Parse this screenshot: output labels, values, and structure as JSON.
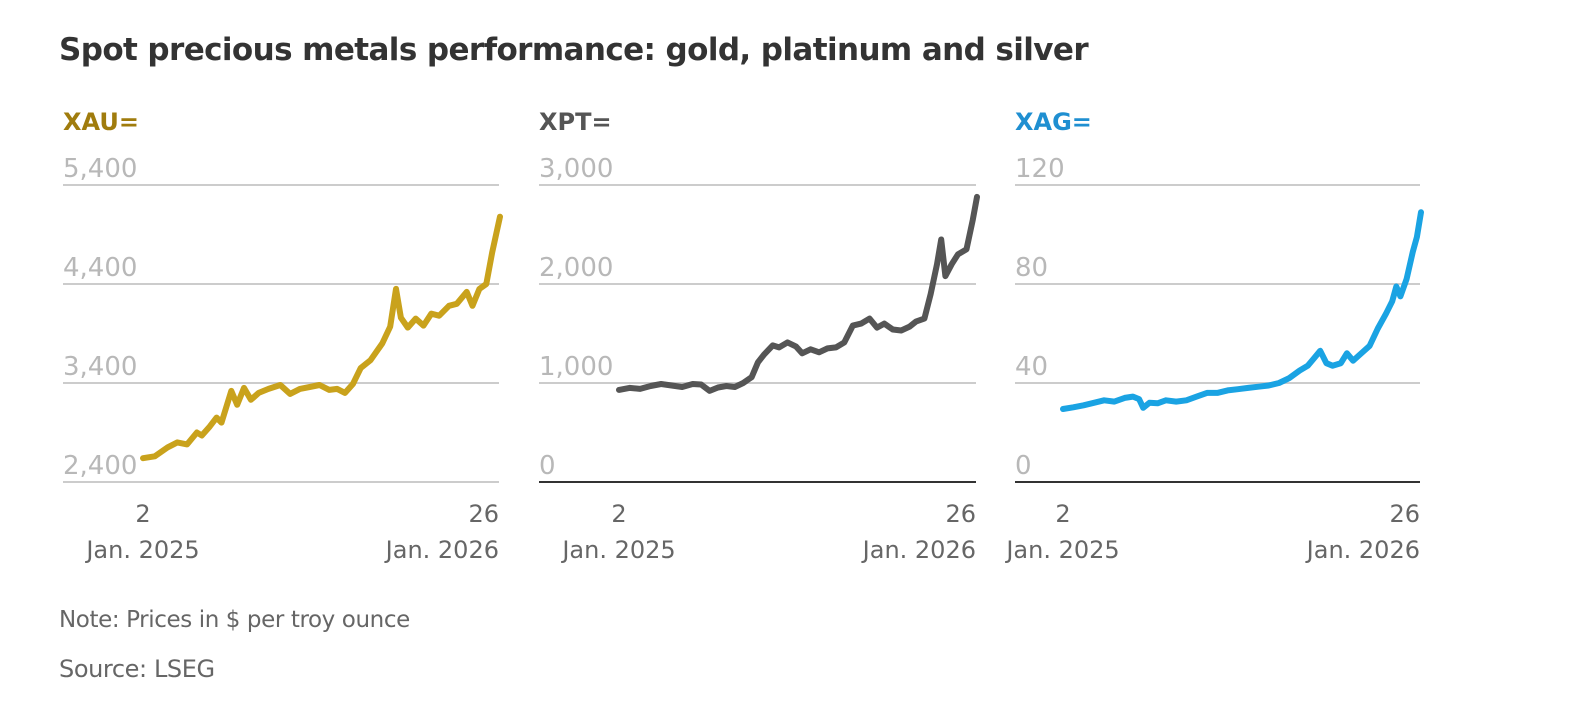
{
  "title": "Spot precious metals performance: gold, platinum and silver",
  "note": "Note: Prices in $ per troy ounce",
  "source": "Source: LSEG",
  "chart_data": [
    {
      "type": "line",
      "title": "XAU=",
      "color": "#c9a21c",
      "title_color": "#a07c0d",
      "ylim": [
        2400,
        5400
      ],
      "yticks": [
        2400,
        3400,
        4400,
        5400
      ],
      "ytick_labels": [
        "2,400",
        "3,400",
        "4,400",
        "5,400"
      ],
      "xticks": [
        {
          "line1": "2",
          "line2": "Jan. 2025"
        },
        {
          "line1": "26",
          "line2": "Jan. 2026"
        }
      ],
      "x_start": "2025-01-02",
      "x_end": "2026-01-26",
      "series": [
        {
          "name": "XAU=",
          "points": [
            [
              0,
              2640
            ],
            [
              12,
              2660
            ],
            [
              25,
              2750
            ],
            [
              35,
              2800
            ],
            [
              45,
              2780
            ],
            [
              55,
              2900
            ],
            [
              60,
              2870
            ],
            [
              68,
              2960
            ],
            [
              75,
              3050
            ],
            [
              80,
              3000
            ],
            [
              90,
              3320
            ],
            [
              96,
              3180
            ],
            [
              103,
              3350
            ],
            [
              110,
              3230
            ],
            [
              118,
              3300
            ],
            [
              128,
              3340
            ],
            [
              140,
              3380
            ],
            [
              150,
              3290
            ],
            [
              160,
              3340
            ],
            [
              170,
              3360
            ],
            [
              180,
              3380
            ],
            [
              190,
              3330
            ],
            [
              198,
              3340
            ],
            [
              206,
              3300
            ],
            [
              214,
              3390
            ],
            [
              222,
              3550
            ],
            [
              232,
              3630
            ],
            [
              244,
              3800
            ],
            [
              252,
              3970
            ],
            [
              258,
              4350
            ],
            [
              263,
              4060
            ],
            [
              270,
              3960
            ],
            [
              278,
              4050
            ],
            [
              286,
              3980
            ],
            [
              294,
              4100
            ],
            [
              302,
              4080
            ],
            [
              312,
              4180
            ],
            [
              320,
              4200
            ],
            [
              330,
              4320
            ],
            [
              336,
              4180
            ],
            [
              343,
              4350
            ],
            [
              350,
              4400
            ],
            [
              356,
              4720
            ],
            [
              360,
              4900
            ],
            [
              364,
              5080
            ]
          ]
        }
      ]
    },
    {
      "type": "line",
      "title": "XPT=",
      "color": "#555555",
      "title_color": "#555555",
      "ylim": [
        0,
        3000
      ],
      "yticks": [
        0,
        1000,
        2000,
        3000
      ],
      "ytick_labels": [
        "0",
        "1,000",
        "2,000",
        "3,000"
      ],
      "xticks": [
        {
          "line1": "2",
          "line2": "Jan. 2025"
        },
        {
          "line1": "26",
          "line2": "Jan. 2026"
        }
      ],
      "x_start": "2025-01-02",
      "x_end": "2026-01-26",
      "series": [
        {
          "name": "XPT=",
          "points": [
            [
              0,
              930
            ],
            [
              10,
              950
            ],
            [
              20,
              940
            ],
            [
              30,
              970
            ],
            [
              40,
              990
            ],
            [
              50,
              975
            ],
            [
              60,
              960
            ],
            [
              70,
              990
            ],
            [
              78,
              985
            ],
            [
              86,
              920
            ],
            [
              94,
              955
            ],
            [
              102,
              970
            ],
            [
              110,
              960
            ],
            [
              118,
              1000
            ],
            [
              126,
              1060
            ],
            [
              132,
              1210
            ],
            [
              138,
              1290
            ],
            [
              146,
              1380
            ],
            [
              152,
              1360
            ],
            [
              160,
              1410
            ],
            [
              168,
              1370
            ],
            [
              174,
              1300
            ],
            [
              182,
              1340
            ],
            [
              190,
              1310
            ],
            [
              198,
              1350
            ],
            [
              206,
              1360
            ],
            [
              214,
              1410
            ],
            [
              222,
              1580
            ],
            [
              230,
              1600
            ],
            [
              238,
              1650
            ],
            [
              245,
              1560
            ],
            [
              252,
              1600
            ],
            [
              260,
              1540
            ],
            [
              268,
              1530
            ],
            [
              276,
              1570
            ],
            [
              282,
              1620
            ],
            [
              290,
              1650
            ],
            [
              296,
              1900
            ],
            [
              302,
              2200
            ],
            [
              306,
              2450
            ],
            [
              310,
              2080
            ],
            [
              316,
              2200
            ],
            [
              322,
              2300
            ],
            [
              330,
              2350
            ],
            [
              336,
              2650
            ],
            [
              340,
              2880
            ]
          ]
        }
      ]
    },
    {
      "type": "line",
      "title": "XAG=",
      "color": "#1aa3e3",
      "title_color": "#1f8fd1",
      "ylim": [
        0,
        120
      ],
      "yticks": [
        0,
        40,
        80,
        120
      ],
      "ytick_labels": [
        "0",
        "40",
        "80",
        "120"
      ],
      "xticks": [
        {
          "line1": "2",
          "line2": "Jan. 2025"
        },
        {
          "line1": "26",
          "line2": "Jan. 2026"
        }
      ],
      "x_start": "2025-01-02",
      "x_end": "2026-01-26",
      "series": [
        {
          "name": "XAG=",
          "points": [
            [
              0,
              29.5
            ],
            [
              10,
              30.2
            ],
            [
              20,
              31
            ],
            [
              30,
              32
            ],
            [
              40,
              33
            ],
            [
              50,
              32.5
            ],
            [
              60,
              34
            ],
            [
              68,
              34.5
            ],
            [
              74,
              33.5
            ],
            [
              78,
              30
            ],
            [
              84,
              32
            ],
            [
              92,
              31.8
            ],
            [
              100,
              33
            ],
            [
              110,
              32.5
            ],
            [
              120,
              33
            ],
            [
              130,
              34.5
            ],
            [
              140,
              36
            ],
            [
              150,
              36
            ],
            [
              160,
              37
            ],
            [
              170,
              37.5
            ],
            [
              180,
              38
            ],
            [
              190,
              38.5
            ],
            [
              200,
              39
            ],
            [
              210,
              40
            ],
            [
              220,
              42
            ],
            [
              230,
              45
            ],
            [
              238,
              47
            ],
            [
              244,
              50
            ],
            [
              250,
              53
            ],
            [
              256,
              48
            ],
            [
              262,
              47
            ],
            [
              270,
              48
            ],
            [
              276,
              52
            ],
            [
              282,
              49
            ],
            [
              290,
              52
            ],
            [
              298,
              55
            ],
            [
              306,
              62
            ],
            [
              314,
              68
            ],
            [
              320,
              73
            ],
            [
              324,
              79
            ],
            [
              328,
              75
            ],
            [
              334,
              82
            ],
            [
              340,
              93
            ],
            [
              344,
              99
            ],
            [
              348,
              109
            ]
          ]
        }
      ]
    }
  ]
}
